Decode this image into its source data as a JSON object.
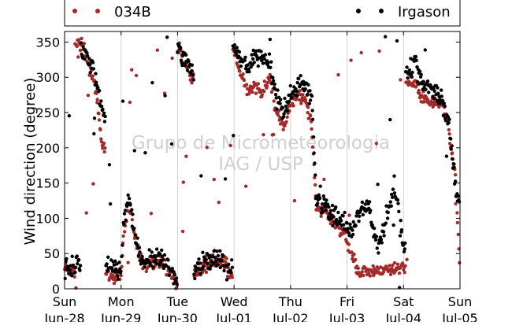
{
  "chart_data": {
    "type": "scatter",
    "title": "",
    "xlabel": "",
    "ylabel": "Wind direction (degree)",
    "ylim": [
      0,
      365
    ],
    "yticks": [
      0,
      50,
      100,
      150,
      200,
      250,
      300,
      350
    ],
    "xlim": [
      "2014-06-28",
      "2014-07-05"
    ],
    "xticks": [
      {
        "day": "Sun",
        "date": "Jun-28"
      },
      {
        "day": "Mon",
        "date": "Jun-29"
      },
      {
        "day": "Tue",
        "date": "Jun-30"
      },
      {
        "day": "Wed",
        "date": "Jul-01"
      },
      {
        "day": "Thu",
        "date": "Jul-02"
      },
      {
        "day": "Fri",
        "date": "Jul-03"
      },
      {
        "day": "Sat",
        "date": "Jul-04"
      },
      {
        "day": "Sun",
        "date": "Jul-05"
      }
    ],
    "grid": "vertical",
    "legend": "top",
    "watermark": [
      "Grupo de Micrometeorologia",
      "IAG / USP"
    ],
    "series": [
      {
        "name": "034B",
        "color": "#a52a2a",
        "trend": [
          [
            "2014-06-28T00:00",
            30
          ],
          [
            "2014-06-28T03:00",
            25
          ],
          [
            "2014-06-28T06:00",
            350
          ],
          [
            "2014-06-28T08:00",
            340
          ],
          [
            "2014-06-28T10:00",
            320
          ],
          [
            "2014-06-28T12:00",
            300
          ],
          [
            "2014-06-28T14:00",
            260
          ],
          [
            "2014-06-28T16:00",
            200
          ],
          [
            "2014-06-28T19:00",
            20
          ],
          [
            "2014-06-29T00:00",
            20
          ],
          [
            "2014-06-29T01:00",
            80
          ],
          [
            "2014-06-29T03:00",
            115
          ],
          [
            "2014-06-29T05:00",
            90
          ],
          [
            "2014-06-29T08:00",
            40
          ],
          [
            "2014-06-29T12:00",
            35
          ],
          [
            "2014-06-29T16:00",
            40
          ],
          [
            "2014-06-29T20:00",
            30
          ],
          [
            "2014-06-29T23:00",
            10
          ],
          [
            "2014-06-30T01:00",
            340
          ],
          [
            "2014-06-30T03:00",
            320
          ],
          [
            "2014-06-30T06:00",
            300
          ],
          [
            "2014-06-30T08:00",
            25
          ],
          [
            "2014-06-30T12:00",
            30
          ],
          [
            "2014-06-30T16:00",
            40
          ],
          [
            "2014-06-30T20:00",
            35
          ],
          [
            "2014-06-30T23:00",
            20
          ],
          [
            "2014-07-01T00:00",
            340
          ],
          [
            "2014-07-01T03:00",
            300
          ],
          [
            "2014-07-01T06:00",
            280
          ],
          [
            "2014-07-01T09:00",
            285
          ],
          [
            "2014-07-01T12:00",
            275
          ],
          [
            "2014-07-01T15:00",
            300
          ],
          [
            "2014-07-01T18:00",
            250
          ],
          [
            "2014-07-01T21:00",
            230
          ],
          [
            "2014-07-02T00:00",
            260
          ],
          [
            "2014-07-02T03:00",
            280
          ],
          [
            "2014-07-02T06:00",
            270
          ],
          [
            "2014-07-02T09:00",
            230
          ],
          [
            "2014-07-02T11:00",
            115
          ],
          [
            "2014-07-02T15:00",
            110
          ],
          [
            "2014-07-02T19:00",
            90
          ],
          [
            "2014-07-02T23:00",
            75
          ],
          [
            "2014-07-03T02:00",
            50
          ],
          [
            "2014-07-03T05:00",
            25
          ],
          [
            "2014-07-03T09:00",
            25
          ],
          [
            "2014-07-03T13:00",
            25
          ],
          [
            "2014-07-03T16:00",
            28
          ],
          [
            "2014-07-03T20:00",
            30
          ],
          [
            "2014-07-04T00:00",
            30
          ],
          [
            "2014-07-04T02:00",
            290
          ],
          [
            "2014-07-04T05:00",
            295
          ],
          [
            "2014-07-04T08:00",
            270
          ],
          [
            "2014-07-04T12:00",
            265
          ],
          [
            "2014-07-04T16:00",
            270
          ],
          [
            "2014-07-04T19:00",
            230
          ],
          [
            "2014-07-04T22:00",
            160
          ],
          [
            "2014-07-05T00:00",
            25
          ]
        ]
      },
      {
        "name": "Irgason",
        "color": "#000000",
        "trend": [
          [
            "2014-06-28T00:00",
            30
          ],
          [
            "2014-06-28T03:00",
            25
          ],
          [
            "2014-06-28T06:00",
            40
          ],
          [
            "2014-06-28T08:00",
            335
          ],
          [
            "2014-06-28T10:00",
            330
          ],
          [
            "2014-06-28T12:00",
            310
          ],
          [
            "2014-06-28T14:00",
            290
          ],
          [
            "2014-06-28T16:00",
            250
          ],
          [
            "2014-06-28T19:00",
            30
          ],
          [
            "2014-06-29T00:00",
            30
          ],
          [
            "2014-06-29T01:00",
            90
          ],
          [
            "2014-06-29T03:00",
            125
          ],
          [
            "2014-06-29T05:00",
            95
          ],
          [
            "2014-06-29T08:00",
            45
          ],
          [
            "2014-06-29T12:00",
            40
          ],
          [
            "2014-06-29T16:00",
            45
          ],
          [
            "2014-06-29T20:00",
            35
          ],
          [
            "2014-06-29T23:00",
            15
          ],
          [
            "2014-06-30T01:00",
            340
          ],
          [
            "2014-06-30T03:00",
            320
          ],
          [
            "2014-06-30T06:00",
            310
          ],
          [
            "2014-06-30T08:00",
            30
          ],
          [
            "2014-06-30T12:00",
            40
          ],
          [
            "2014-06-30T16:00",
            45
          ],
          [
            "2014-06-30T20:00",
            35
          ],
          [
            "2014-06-30T23:00",
            25
          ],
          [
            "2014-07-01T00:00",
            345
          ],
          [
            "2014-07-01T03:00",
            320
          ],
          [
            "2014-07-01T06:00",
            320
          ],
          [
            "2014-07-01T09:00",
            330
          ],
          [
            "2014-07-01T12:00",
            330
          ],
          [
            "2014-07-01T15:00",
            320
          ],
          [
            "2014-07-01T18:00",
            270
          ],
          [
            "2014-07-01T21:00",
            250
          ],
          [
            "2014-07-02T00:00",
            270
          ],
          [
            "2014-07-02T03:00",
            290
          ],
          [
            "2014-07-02T06:00",
            290
          ],
          [
            "2014-07-02T09:00",
            270
          ],
          [
            "2014-07-02T11:00",
            125
          ],
          [
            "2014-07-02T15:00",
            120
          ],
          [
            "2014-07-02T19:00",
            100
          ],
          [
            "2014-07-02T23:00",
            95
          ],
          [
            "2014-07-03T02:00",
            80
          ],
          [
            "2014-07-03T05:00",
            110
          ],
          [
            "2014-07-03T09:00",
            120
          ],
          [
            "2014-07-03T13:00",
            60
          ],
          [
            "2014-07-03T16:00",
            90
          ],
          [
            "2014-07-03T20:00",
            150
          ],
          [
            "2014-07-04T00:00",
            60
          ],
          [
            "2014-07-04T02:00",
            310
          ],
          [
            "2014-07-04T05:00",
            320
          ],
          [
            "2014-07-04T08:00",
            290
          ],
          [
            "2014-07-04T12:00",
            280
          ],
          [
            "2014-07-04T16:00",
            270
          ],
          [
            "2014-07-04T19:00",
            240
          ],
          [
            "2014-07-04T22:00",
            150
          ],
          [
            "2014-07-05T00:00",
            120
          ]
        ]
      }
    ]
  }
}
